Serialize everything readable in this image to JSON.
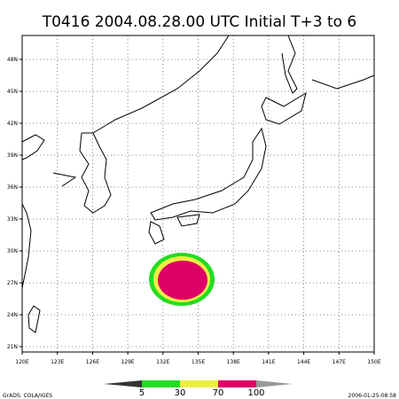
{
  "title": "T0416 2004.08.28.00 UTC Initial T+3 to 6",
  "lon_labels": [
    "120E",
    "123E",
    "126E",
    "129E",
    "132E",
    "135E",
    "138E",
    "141E",
    "144E",
    "147E",
    "150E"
  ],
  "lat_labels": [
    "48N",
    "45N",
    "42N",
    "39N",
    "36N",
    "33N",
    "30N",
    "27N",
    "24N",
    "21N"
  ],
  "colorbar": {
    "labels": [
      "5",
      "30",
      "70",
      "100"
    ]
  },
  "footer": {
    "credit": "GrADS: COLA/IGES",
    "timestamp": "2006-01-25-08:58"
  }
}
